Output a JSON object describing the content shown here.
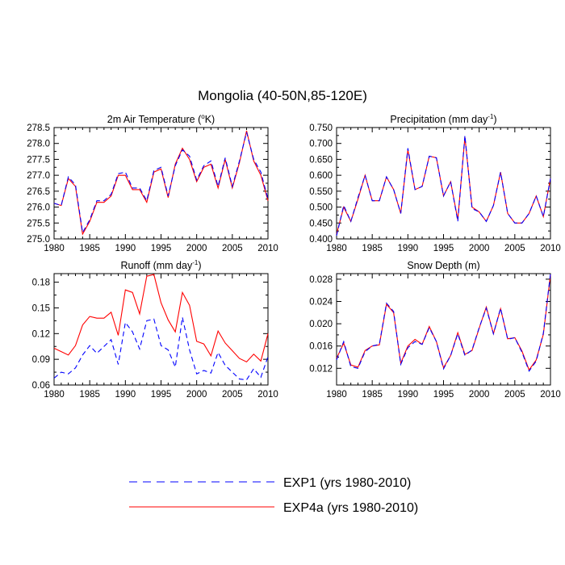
{
  "figure": {
    "title": "Mongolia (40-50N,85-120E)"
  },
  "colors": {
    "exp1": "#0000ff",
    "exp4a": "#ff0000",
    "axis": "#000000"
  },
  "legend": [
    {
      "label": "EXP1 (yrs 1980-2010)",
      "style": "dashed",
      "color": "#0000ff"
    },
    {
      "label": "EXP4a (yrs 1980-2010)",
      "style": "solid",
      "color": "#ff0000"
    }
  ],
  "chart_data": [
    {
      "id": "temp",
      "type": "line",
      "title_pre": "2m Air Temperature (",
      "title_sup": "o",
      "title_post": "K)",
      "xlim": [
        1980,
        2010
      ],
      "xticks": [
        "1980",
        "1985",
        "1990",
        "1995",
        "2000",
        "2005",
        "2010"
      ],
      "ylim": [
        275.0,
        278.5
      ],
      "yticks": [
        "275.0",
        "275.5",
        "276.0",
        "276.5",
        "277.0",
        "277.5",
        "278.0",
        "278.5"
      ],
      "x": [
        1980,
        1981,
        1982,
        1983,
        1984,
        1985,
        1986,
        1987,
        1988,
        1989,
        1990,
        1991,
        1992,
        1993,
        1994,
        1995,
        1996,
        1997,
        1998,
        1999,
        2000,
        2001,
        2002,
        2003,
        2004,
        2005,
        2006,
        2007,
        2008,
        2009,
        2010
      ],
      "series": [
        {
          "name": "EXP1",
          "values": [
            276.12,
            276.05,
            276.95,
            276.7,
            275.2,
            275.6,
            276.2,
            276.2,
            276.4,
            277.05,
            277.1,
            276.6,
            276.6,
            276.2,
            277.15,
            277.25,
            276.35,
            277.3,
            277.8,
            277.6,
            276.85,
            277.3,
            277.45,
            276.65,
            277.55,
            276.65,
            277.45,
            278.35,
            277.5,
            277.1,
            276.25
          ]
        },
        {
          "name": "EXP4a",
          "values": [
            276.12,
            276.05,
            276.9,
            276.65,
            275.15,
            275.55,
            276.15,
            276.15,
            276.35,
            277.0,
            277.0,
            276.55,
            276.55,
            276.15,
            277.1,
            277.2,
            276.3,
            277.35,
            277.85,
            277.5,
            276.8,
            277.25,
            277.35,
            276.6,
            277.5,
            276.6,
            277.4,
            278.4,
            277.45,
            277.0,
            276.2
          ]
        }
      ]
    },
    {
      "id": "precip",
      "type": "line",
      "title_pre": "Precipitation (mm day",
      "title_sup": "-1",
      "title_post": ")",
      "xlim": [
        1980,
        2010
      ],
      "xticks": [
        "1980",
        "1985",
        "1990",
        "1995",
        "2000",
        "2005",
        "2010"
      ],
      "ylim": [
        0.4,
        0.75
      ],
      "yticks": [
        "0.400",
        "0.450",
        "0.500",
        "0.550",
        "0.600",
        "0.650",
        "0.700",
        "0.750"
      ],
      "x": [
        1980,
        1981,
        1982,
        1983,
        1984,
        1985,
        1986,
        1987,
        1988,
        1989,
        1990,
        1991,
        1992,
        1993,
        1994,
        1995,
        1996,
        1997,
        1998,
        1999,
        2000,
        2001,
        2002,
        2003,
        2004,
        2005,
        2006,
        2007,
        2008,
        2009,
        2010
      ],
      "series": [
        {
          "name": "EXP1",
          "values": [
            0.41,
            0.505,
            0.455,
            0.53,
            0.6,
            0.52,
            0.52,
            0.595,
            0.555,
            0.48,
            0.685,
            0.555,
            0.565,
            0.66,
            0.655,
            0.535,
            0.58,
            0.455,
            0.725,
            0.495,
            0.485,
            0.455,
            0.505,
            0.61,
            0.48,
            0.45,
            0.45,
            0.48,
            0.535,
            0.47,
            0.59
          ]
        },
        {
          "name": "EXP4a",
          "values": [
            0.415,
            0.5,
            0.455,
            0.525,
            0.6,
            0.52,
            0.52,
            0.595,
            0.555,
            0.48,
            0.68,
            0.555,
            0.565,
            0.66,
            0.655,
            0.535,
            0.58,
            0.46,
            0.72,
            0.5,
            0.485,
            0.455,
            0.505,
            0.61,
            0.48,
            0.45,
            0.45,
            0.48,
            0.535,
            0.47,
            0.59
          ]
        }
      ]
    },
    {
      "id": "runoff",
      "type": "line",
      "title_pre": "Runoff (mm day",
      "title_sup": "-1",
      "title_post": ")",
      "xlim": [
        1980,
        2010
      ],
      "xticks": [
        "1980",
        "1985",
        "1990",
        "1995",
        "2000",
        "2005",
        "2010"
      ],
      "ylim": [
        0.06,
        0.19
      ],
      "yticks": [
        "0.06",
        "0.09",
        "0.12",
        "0.15",
        "0.18"
      ],
      "ytick_values": [
        0.06,
        0.09,
        0.12,
        0.15,
        0.18
      ],
      "x": [
        1980,
        1981,
        1982,
        1983,
        1984,
        1985,
        1986,
        1987,
        1988,
        1989,
        1990,
        1991,
        1992,
        1993,
        1994,
        1995,
        1996,
        1997,
        1998,
        1999,
        2000,
        2001,
        2002,
        2003,
        2004,
        2005,
        2006,
        2007,
        2008,
        2009,
        2010
      ],
      "series": [
        {
          "name": "EXP1",
          "values": [
            0.068,
            0.075,
            0.073,
            0.08,
            0.095,
            0.106,
            0.097,
            0.105,
            0.113,
            0.084,
            0.133,
            0.122,
            0.102,
            0.135,
            0.137,
            0.106,
            0.101,
            0.081,
            0.139,
            0.101,
            0.073,
            0.077,
            0.074,
            0.098,
            0.083,
            0.075,
            0.067,
            0.066,
            0.079,
            0.069,
            0.093
          ]
        },
        {
          "name": "EXP4a",
          "values": [
            0.103,
            0.099,
            0.095,
            0.106,
            0.13,
            0.14,
            0.138,
            0.138,
            0.145,
            0.118,
            0.171,
            0.168,
            0.143,
            0.187,
            0.189,
            0.156,
            0.136,
            0.122,
            0.168,
            0.153,
            0.111,
            0.108,
            0.094,
            0.123,
            0.109,
            0.1,
            0.091,
            0.087,
            0.096,
            0.088,
            0.12
          ]
        }
      ]
    },
    {
      "id": "snow",
      "type": "line",
      "title_pre": "Snow Depth (m)",
      "title_sup": "",
      "title_post": "",
      "xlim": [
        1980,
        2010
      ],
      "xticks": [
        "1980",
        "1985",
        "1990",
        "1995",
        "2000",
        "2005",
        "2010"
      ],
      "ylim": [
        0.009,
        0.029
      ],
      "yticks": [
        "0.012",
        "0.016",
        "0.020",
        "0.024",
        "0.028"
      ],
      "ytick_values": [
        0.012,
        0.016,
        0.02,
        0.024,
        0.028
      ],
      "x": [
        1980,
        1981,
        1982,
        1983,
        1984,
        1985,
        1986,
        1987,
        1988,
        1989,
        1990,
        1991,
        1992,
        1993,
        1994,
        1995,
        1996,
        1997,
        1998,
        1999,
        2000,
        2001,
        2002,
        2003,
        2004,
        2005,
        2006,
        2007,
        2008,
        2009,
        2010
      ],
      "series": [
        {
          "name": "EXP1",
          "values": [
            0.0135,
            0.0168,
            0.0123,
            0.012,
            0.015,
            0.016,
            0.0163,
            0.0237,
            0.0222,
            0.0127,
            0.0157,
            0.0168,
            0.0163,
            0.0193,
            0.0168,
            0.0119,
            0.0143,
            0.0182,
            0.0143,
            0.0153,
            0.0193,
            0.0228,
            0.0182,
            0.0228,
            0.0172,
            0.0175,
            0.0149,
            0.0115,
            0.0133,
            0.0183,
            0.029
          ]
        },
        {
          "name": "EXP4a",
          "values": [
            0.0138,
            0.0165,
            0.0126,
            0.0122,
            0.0152,
            0.016,
            0.0162,
            0.0235,
            0.022,
            0.0129,
            0.016,
            0.0172,
            0.0163,
            0.0195,
            0.0168,
            0.0121,
            0.0143,
            0.0184,
            0.0145,
            0.0152,
            0.0192,
            0.023,
            0.0182,
            0.0227,
            0.0173,
            0.0175,
            0.0151,
            0.0117,
            0.0135,
            0.0181,
            0.0288
          ]
        }
      ]
    }
  ]
}
